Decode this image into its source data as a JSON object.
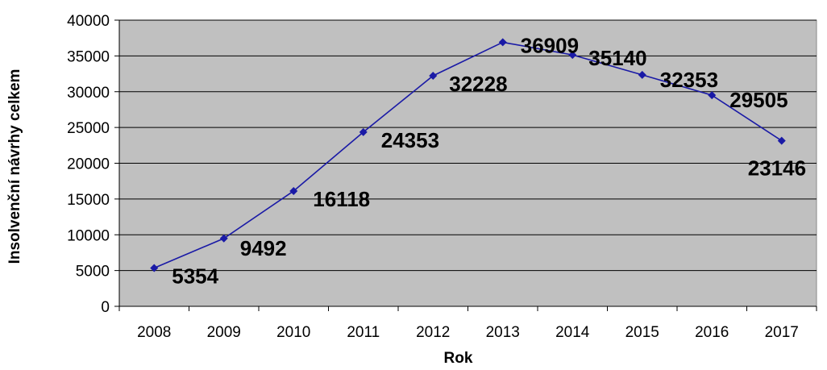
{
  "chart_data": {
    "type": "line",
    "title": "",
    "xlabel": "Rok",
    "ylabel": "Insolvenční návrhy celkem",
    "categories": [
      "2008",
      "2009",
      "2010",
      "2011",
      "2012",
      "2013",
      "2014",
      "2015",
      "2016",
      "2017"
    ],
    "series": [
      {
        "values": [
          5354,
          9492,
          16118,
          24353,
          32228,
          36909,
          35140,
          32353,
          29505,
          23146
        ],
        "color": "#1a1aa6"
      }
    ],
    "data_labels": [
      "5354",
      "9492",
      "16118",
      "24353",
      "32228",
      "36909",
      "35140",
      "32353",
      "29505",
      "23146"
    ],
    "ylim": [
      0,
      40000
    ],
    "yticks": [
      0,
      5000,
      10000,
      15000,
      20000,
      25000,
      30000,
      35000,
      40000
    ],
    "ytick_labels": [
      "0",
      "5000",
      "10000",
      "15000",
      "20000",
      "25000",
      "30000",
      "35000",
      "40000"
    ],
    "grid": true,
    "legend": "none",
    "plot_background": "#c0c0c0"
  }
}
